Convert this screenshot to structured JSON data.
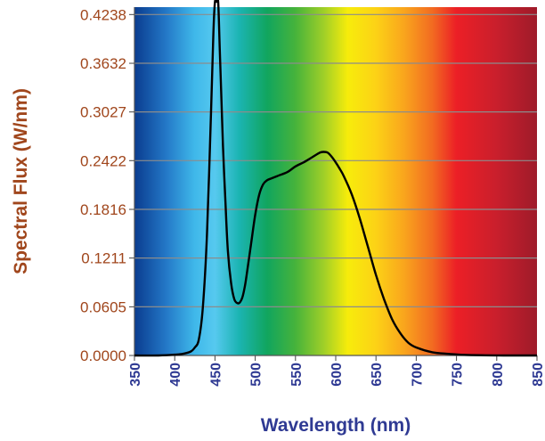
{
  "chart_data": {
    "type": "line",
    "title": "",
    "xlabel": "Wavelength (nm)",
    "ylabel": "Spectral Flux (W/nm)",
    "xlim": [
      350,
      850
    ],
    "ylim": [
      0,
      0.433
    ],
    "x_ticks": [
      "350",
      "400",
      "450",
      "500",
      "550",
      "600",
      "650",
      "700",
      "750",
      "800",
      "850"
    ],
    "y_ticks": [
      "0.0000",
      "0.0605",
      "0.1211",
      "0.1816",
      "0.2422",
      "0.3027",
      "0.3632",
      "0.4238"
    ],
    "grid": "horizontal",
    "legend": "none",
    "background": "visible spectrum gradient",
    "colors": {
      "line": "#000000",
      "grid": "#8c8c8c",
      "ytick_text": "#a0461c",
      "xtick_text": "#2f3a93"
    },
    "series": [
      {
        "x": [
          350,
          380,
          400,
          410,
          420,
          425,
          430,
          435,
          440,
          445,
          448,
          450,
          452,
          454,
          456,
          458,
          460,
          463,
          466,
          470,
          474,
          478,
          481,
          484,
          487,
          490,
          495,
          500,
          505,
          510,
          515,
          520,
          525,
          530,
          540,
          550,
          560,
          570,
          580,
          585,
          590,
          595,
          600,
          605,
          610,
          620,
          630,
          640,
          650,
          660,
          670,
          680,
          690,
          700,
          720,
          740,
          760,
          780,
          800,
          820,
          850
        ],
        "y": [
          0.0,
          0.0,
          0.001,
          0.002,
          0.005,
          0.01,
          0.02,
          0.06,
          0.15,
          0.3,
          0.4,
          0.455,
          0.47,
          0.44,
          0.38,
          0.32,
          0.26,
          0.19,
          0.13,
          0.09,
          0.07,
          0.065,
          0.066,
          0.072,
          0.085,
          0.105,
          0.14,
          0.175,
          0.2,
          0.213,
          0.218,
          0.22,
          0.222,
          0.224,
          0.228,
          0.235,
          0.24,
          0.246,
          0.252,
          0.253,
          0.252,
          0.247,
          0.24,
          0.232,
          0.223,
          0.2,
          0.17,
          0.135,
          0.1,
          0.07,
          0.045,
          0.028,
          0.016,
          0.01,
          0.004,
          0.002,
          0.0008,
          0.0003,
          0.0001,
          0.0,
          0.0
        ]
      }
    ]
  }
}
